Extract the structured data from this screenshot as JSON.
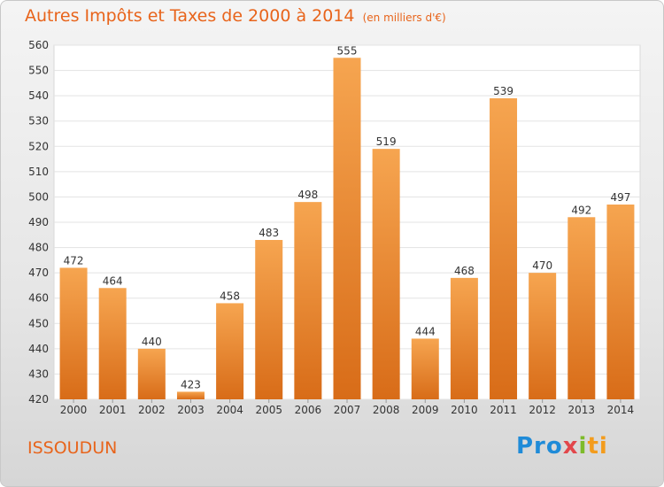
{
  "title": "Autres Impôts et Taxes de 2000 à 2014",
  "unit_note": "(en milliers d'€)",
  "city": "ISSOUDUN",
  "brand": {
    "part1": "Pro",
    "part2": "x",
    "part3": "i",
    "part4": "ti"
  },
  "colors": {
    "bar_top": "#f6a550",
    "bar_bottom": "#d86c18",
    "title": "#e8641b"
  },
  "chart_data": {
    "type": "bar",
    "title": "Autres Impôts et Taxes de 2000 à 2014",
    "subtitle": "(en milliers d'€)",
    "xlabel": "",
    "ylabel": "",
    "ylim": [
      420,
      560
    ],
    "yticks": [
      420,
      430,
      440,
      450,
      460,
      470,
      480,
      490,
      500,
      510,
      520,
      530,
      540,
      550,
      560
    ],
    "grid": true,
    "categories": [
      "2000",
      "2001",
      "2002",
      "2003",
      "2004",
      "2005",
      "2006",
      "2007",
      "2008",
      "2009",
      "2010",
      "2011",
      "2012",
      "2013",
      "2014"
    ],
    "values": [
      472,
      464,
      440,
      423,
      458,
      483,
      498,
      555,
      519,
      444,
      468,
      539,
      470,
      492,
      497
    ]
  }
}
